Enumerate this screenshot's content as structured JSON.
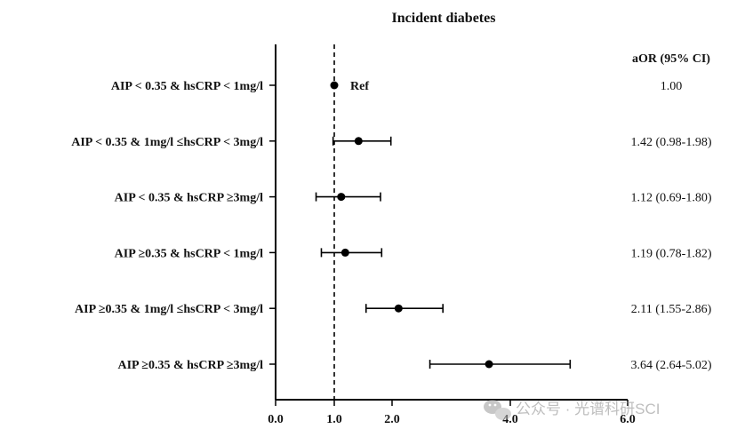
{
  "chart_data": {
    "type": "forest",
    "title": "Incident diabetes",
    "column_header": "aOR (95% CI)",
    "reference_label": "Ref",
    "xlim": [
      0,
      6
    ],
    "x_ticks": [
      "0.0",
      "1.0",
      "2.0",
      "4.0",
      "6.0"
    ],
    "reference_line": 1.0,
    "rows": [
      {
        "label": "AIP < 0.35 & hsCRP < 1mg/l",
        "estimate": 1.0,
        "lower": null,
        "upper": null,
        "text": "1.00"
      },
      {
        "label": "AIP < 0.35 & 1mg/l ≤hsCRP < 3mg/l",
        "estimate": 1.42,
        "lower": 0.98,
        "upper": 1.98,
        "text": "1.42 (0.98-1.98)"
      },
      {
        "label": "AIP < 0.35 & hsCRP ≥3mg/l",
        "estimate": 1.12,
        "lower": 0.69,
        "upper": 1.8,
        "text": "1.12 (0.69-1.80)"
      },
      {
        "label": "AIP ≥0.35 & hsCRP < 1mg/l",
        "estimate": 1.19,
        "lower": 0.78,
        "upper": 1.82,
        "text": "1.19 (0.78-1.82)"
      },
      {
        "label": "AIP ≥0.35 & 1mg/l ≤hsCRP < 3mg/l",
        "estimate": 2.11,
        "lower": 1.55,
        "upper": 2.86,
        "text": "2.11 (1.55-2.86)"
      },
      {
        "label": "AIP ≥0.35 & hsCRP ≥3mg/l",
        "estimate": 3.64,
        "lower": 2.64,
        "upper": 5.02,
        "text": "3.64 (2.64-5.02)"
      }
    ]
  },
  "watermark": "公众号 · 光谱科研SCI"
}
